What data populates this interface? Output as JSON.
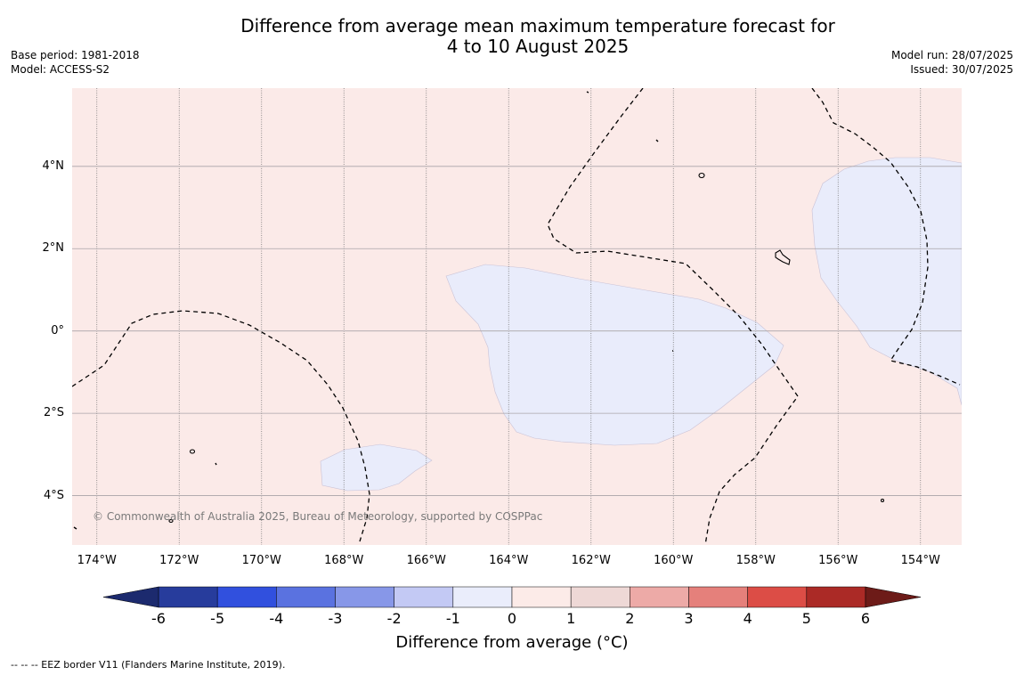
{
  "title_line1": "Difference from average mean maximum temperature forecast for",
  "title_line2": "4 to 10 August 2025",
  "meta_left": [
    "Base period: 1981-2018",
    "Model: ACCESS-S2"
  ],
  "meta_right": [
    "Model run: 28/07/2025",
    "Issued: 30/07/2025"
  ],
  "latitude_labels": [
    {
      "value": 4,
      "label": "4°N"
    },
    {
      "value": 2,
      "label": "2°N"
    },
    {
      "value": 0,
      "label": "0°"
    },
    {
      "value": -2,
      "label": "2°S"
    },
    {
      "value": -4,
      "label": "4°S"
    }
  ],
  "longitude_labels": [
    {
      "value": -174,
      "label": "174°W"
    },
    {
      "value": -172,
      "label": "172°W"
    },
    {
      "value": -170,
      "label": "170°W"
    },
    {
      "value": -168,
      "label": "168°W"
    },
    {
      "value": -166,
      "label": "166°W"
    },
    {
      "value": -164,
      "label": "164°W"
    },
    {
      "value": -162,
      "label": "162°W"
    },
    {
      "value": -160,
      "label": "160°W"
    },
    {
      "value": -158,
      "label": "158°W"
    },
    {
      "value": -156,
      "label": "156°W"
    },
    {
      "value": -154,
      "label": "154°W"
    }
  ],
  "extent": {
    "lon_min": -174.6,
    "lon_max": -153.0,
    "lat_min": -5.2,
    "lat_max": 5.9
  },
  "copyright": "© Commonwealth of Australia 2025, Bureau of Meteorology, supported by COSPPac",
  "colorbar": {
    "title": "Difference from average (°C)",
    "ticks": [
      "-6",
      "-5",
      "-4",
      "-3",
      "-2",
      "-1",
      "0",
      "1",
      "2",
      "3",
      "4",
      "5",
      "6"
    ],
    "colors": [
      "#273c9c",
      "#3150de",
      "#5a72e0",
      "#8797e8",
      "#c3c9f4",
      "#eaedfb",
      "#fcebe8",
      "#eed8d6",
      "#edaaa7",
      "#e5807b",
      "#dc4d46",
      "#ab2a26"
    ],
    "extend_low_color": "#1c2a6e",
    "extend_high_color": "#6d1b18"
  },
  "map_colors": {
    "background": "#fbeae8",
    "cool_region": "#e9ecfb",
    "grid": "#777777"
  },
  "footnote": "--  --  -- EEZ border V11 (Flanders Marine Institute, 2019)."
}
